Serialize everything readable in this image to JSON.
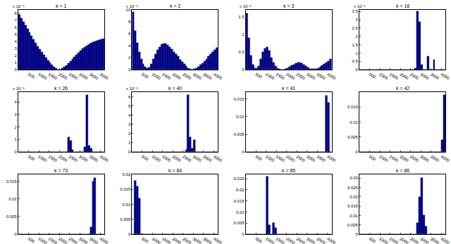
{
  "chart_data": [
    {
      "type": "histogram",
      "title": "k = 1",
      "annotations": [
        "x 10⁻³"
      ],
      "color": "#00008f",
      "bins": [
        0,
        100,
        200,
        300,
        400,
        500,
        600,
        700,
        800,
        900,
        1000,
        1100,
        1200,
        1300,
        1400,
        1500,
        1600,
        1700,
        1800,
        1900,
        2000,
        2100,
        2200,
        2300,
        2400,
        2500,
        2600,
        2700,
        2800,
        2900,
        3000,
        3100,
        3200,
        3300,
        3400,
        3500,
        3600,
        3700,
        3800,
        3900,
        4000,
        4100,
        4200
      ],
      "values": [
        7.8,
        7.3,
        6.8,
        6.3,
        5.8,
        5.3,
        4.8,
        4.3,
        3.8,
        3.3,
        2.9,
        2.5,
        2.1,
        1.7,
        1.3,
        1.0,
        0.7,
        0.4,
        0.2,
        0.05,
        0.05,
        0.2,
        0.4,
        0.6,
        0.9,
        1.2,
        1.5,
        1.8,
        2.1,
        2.4,
        2.7,
        3.0,
        3.2,
        3.4,
        3.6,
        3.8,
        3.9,
        4.0,
        4.1,
        4.2,
        4.3,
        4.4
      ],
      "xlim": [
        0,
        4200
      ],
      "xticks": [
        500,
        1000,
        1500,
        2000,
        2500,
        3000,
        3500,
        4000
      ],
      "ylim": [
        0,
        8.5
      ],
      "yticks": [
        0,
        1,
        2,
        3,
        4,
        5,
        6,
        7,
        8
      ]
    },
    {
      "type": "histogram",
      "title": "k = 2",
      "annotations": [
        "x 10⁻³"
      ],
      "color": "#00008f",
      "bins": [
        0,
        100,
        200,
        300,
        400,
        500,
        600,
        700,
        800,
        900,
        1000,
        1100,
        1200,
        1300,
        1400,
        1500,
        1600,
        1700,
        1800,
        1900,
        2000,
        2100,
        2200,
        2300,
        2400,
        2500,
        2600,
        2700,
        2800,
        2900,
        3000,
        3100,
        3200,
        3300,
        3400,
        3500,
        3600,
        3700,
        3800,
        3900,
        4000,
        4100,
        4200
      ],
      "values": [
        9.6,
        6.5,
        4.5,
        3.0,
        1.8,
        1.0,
        0.5,
        0.2,
        0.4,
        1.0,
        1.8,
        2.6,
        3.3,
        3.8,
        4.2,
        4.4,
        4.3,
        4.1,
        3.8,
        3.4,
        3.0,
        2.6,
        2.2,
        1.7,
        1.3,
        0.9,
        0.6,
        0.3,
        0.1,
        0.05,
        0.1,
        0.3,
        0.5,
        0.8,
        1.1,
        1.4,
        1.8,
        2.2,
        2.6,
        3.0,
        3.3,
        3.6
      ],
      "xlim": [
        0,
        4200
      ],
      "xticks": [
        500,
        1000,
        1500,
        2000,
        2500,
        3000,
        3500,
        4000
      ],
      "ylim": [
        0,
        10
      ],
      "yticks": [
        0,
        2,
        4,
        6,
        8,
        10
      ]
    },
    {
      "type": "histogram",
      "title": "k = 3",
      "annotations": [
        "x 10⁻³"
      ],
      "color": "#00008f",
      "bins": [
        0,
        100,
        200,
        300,
        400,
        500,
        600,
        700,
        800,
        900,
        1000,
        1100,
        1200,
        1300,
        1400,
        1500,
        1600,
        1700,
        1800,
        1900,
        2000,
        2100,
        2200,
        2300,
        2400,
        2500,
        2600,
        2700,
        2800,
        2900,
        3000,
        3100,
        3200,
        3300,
        3400,
        3500,
        3600,
        3700,
        3800,
        3900,
        4000,
        4100,
        4200
      ],
      "values": [
        1.6,
        0.9,
        0.4,
        0.15,
        0.05,
        0.05,
        0.1,
        0.3,
        0.5,
        0.6,
        0.65,
        0.55,
        0.35,
        0.2,
        0.1,
        0.05,
        0.02,
        0.01,
        0.01,
        0.02,
        0.05,
        0.08,
        0.12,
        0.15,
        0.18,
        0.2,
        0.2,
        0.18,
        0.15,
        0.1,
        0.06,
        0.03,
        0.02,
        0.02,
        0.03,
        0.05,
        0.08,
        0.12,
        0.16,
        0.2,
        0.25,
        0.3
      ],
      "xlim": [
        0,
        4200
      ],
      "xticks": [
        500,
        1000,
        1500,
        2000,
        2500,
        3000,
        3500,
        4000
      ],
      "ylim": [
        0,
        1.7
      ],
      "yticks": [
        0,
        0.5,
        1,
        1.5
      ]
    },
    {
      "type": "histogram",
      "title": "k = 16",
      "annotations": [
        "x 10⁻³"
      ],
      "color": "#00008f",
      "bins": [
        0,
        100,
        200,
        300,
        400,
        500,
        600,
        700,
        800,
        900,
        1000,
        1100,
        1200,
        1300,
        1400,
        1500,
        1600,
        1700,
        1800,
        1900,
        2000,
        2100,
        2200,
        2300,
        2400,
        2500,
        2600,
        2700,
        2800,
        2900,
        3000,
        3100,
        3200,
        3300,
        3400,
        3500,
        3600,
        3700,
        3800,
        3900,
        4000,
        4100,
        4200
      ],
      "values": [
        0,
        0,
        0,
        0,
        0,
        0,
        0,
        0,
        0,
        0,
        0,
        0,
        0,
        0,
        0,
        0,
        0,
        0,
        0,
        0,
        0,
        0,
        0,
        0,
        0,
        0,
        0,
        0.1,
        3.5,
        2.9,
        0.3,
        0,
        0,
        0.8,
        0,
        0,
        0.6,
        0,
        0,
        0,
        0,
        0
      ],
      "xlim": [
        0,
        4200
      ],
      "xticks": [
        500,
        1000,
        1500,
        2000,
        2500,
        3000,
        3500,
        4000
      ],
      "ylim": [
        0,
        3.6
      ],
      "yticks": [
        0,
        0.5,
        1,
        1.5,
        2,
        2.5,
        3,
        3.5
      ]
    },
    {
      "type": "histogram",
      "title": "k = 26",
      "annotations": [
        "x 10⁻³"
      ],
      "color": "#00008f",
      "bins": [
        0,
        100,
        200,
        300,
        400,
        500,
        600,
        700,
        800,
        900,
        1000,
        1100,
        1200,
        1300,
        1400,
        1500,
        1600,
        1700,
        1800,
        1900,
        2000,
        2100,
        2200,
        2300,
        2400,
        2500,
        2600,
        2700,
        2800,
        2900,
        3000,
        3100,
        3200,
        3300,
        3400,
        3500,
        3600,
        3700,
        3800,
        3900,
        4000,
        4100,
        4200
      ],
      "values": [
        0,
        0,
        0,
        0,
        0,
        0,
        0,
        0,
        0,
        0,
        0,
        0,
        0,
        0,
        0,
        0,
        0,
        0,
        0,
        0,
        0,
        0,
        0,
        0,
        1.2,
        0.9,
        0.2,
        0,
        0,
        0,
        0,
        0,
        0.4,
        4.6,
        0.5,
        0.3,
        0,
        0,
        0,
        0,
        0,
        0
      ],
      "xlim": [
        0,
        4200
      ],
      "xticks": [
        500,
        1000,
        1500,
        2000,
        2500,
        3000,
        3500,
        4000
      ],
      "ylim": [
        0,
        4.8
      ],
      "yticks": [
        0,
        1,
        2,
        3,
        4
      ]
    },
    {
      "type": "histogram",
      "title": "k = 40",
      "annotations": [
        "x 10⁻³"
      ],
      "color": "#00008f",
      "bins": [
        0,
        100,
        200,
        300,
        400,
        500,
        600,
        700,
        800,
        900,
        1000,
        1100,
        1200,
        1300,
        1400,
        1500,
        1600,
        1700,
        1800,
        1900,
        2000,
        2100,
        2200,
        2300,
        2400,
        2500,
        2600,
        2700,
        2800,
        2900,
        3000,
        3100,
        3200,
        3300,
        3400,
        3500,
        3600,
        3700,
        3800,
        3900,
        4000,
        4100,
        4200
      ],
      "values": [
        0,
        0,
        0,
        0,
        0,
        0,
        0,
        0,
        0,
        0,
        0,
        0,
        0,
        0,
        0,
        0,
        0,
        0,
        0,
        0,
        0,
        0,
        0,
        0,
        0,
        0,
        0.2,
        6.2,
        1.6,
        0.4,
        1.3,
        0,
        0,
        0,
        0,
        0,
        0,
        0,
        0,
        0,
        0,
        0
      ],
      "xlim": [
        0,
        4200
      ],
      "xticks": [
        500,
        1000,
        1500,
        2000,
        2500,
        3000,
        3500,
        4000
      ],
      "ylim": [
        0,
        6.5
      ],
      "yticks": [
        0,
        1,
        2,
        3,
        4,
        5,
        6
      ]
    },
    {
      "type": "histogram",
      "title": "k = 41",
      "color": "#00008f",
      "bins": [
        0,
        100,
        200,
        300,
        400,
        500,
        600,
        700,
        800,
        900,
        1000,
        1100,
        1200,
        1300,
        1400,
        1500,
        1600,
        1700,
        1800,
        1900,
        2000,
        2100,
        2200,
        2300,
        2400,
        2500,
        2600,
        2700,
        2800,
        2900,
        3000,
        3100,
        3200,
        3300,
        3400,
        3500,
        3600,
        3700,
        3800,
        3900,
        4000,
        4100,
        4200
      ],
      "values": [
        0,
        0,
        0,
        0,
        0,
        0,
        0,
        0,
        0,
        0,
        0,
        0,
        0,
        0,
        0,
        0,
        0,
        0,
        0,
        0,
        0,
        0,
        0,
        0,
        0,
        0,
        0,
        0,
        0,
        0,
        0,
        0,
        0,
        0,
        0,
        0,
        0,
        0,
        0,
        0.016,
        0.014,
        0
      ],
      "xlim": [
        0,
        4200
      ],
      "xticks": [
        500,
        1000,
        1500,
        2000,
        2500,
        3000,
        3500,
        4000
      ],
      "ylim": [
        0,
        0.017
      ],
      "yticks": [
        0,
        0.005,
        0.01,
        0.015
      ]
    },
    {
      "type": "histogram",
      "title": "k = 42",
      "color": "#00008f",
      "bins": [
        0,
        100,
        200,
        300,
        400,
        500,
        600,
        700,
        800,
        900,
        1000,
        1100,
        1200,
        1300,
        1400,
        1500,
        1600,
        1700,
        1800,
        1900,
        2000,
        2100,
        2200,
        2300,
        2400,
        2500,
        2600,
        2700,
        2800,
        2900,
        3000,
        3100,
        3200,
        3300,
        3400,
        3500,
        3600,
        3700,
        3800,
        3900,
        4000,
        4100,
        4200
      ],
      "values": [
        0,
        0,
        0,
        0,
        0,
        0,
        0,
        0,
        0,
        0,
        0,
        0,
        0,
        0,
        0,
        0,
        0,
        0,
        0,
        0,
        0,
        0,
        0,
        0,
        0,
        0,
        0,
        0,
        0,
        0,
        0,
        0,
        0,
        0,
        0,
        0,
        0,
        0,
        0,
        0,
        0.004,
        0.019
      ],
      "xlim": [
        0,
        4200
      ],
      "xticks": [
        500,
        1000,
        1500,
        2000,
        2500,
        3000,
        3500,
        4000
      ],
      "ylim": [
        0,
        0.02
      ],
      "yticks": [
        0,
        0.005,
        0.01,
        0.015
      ]
    },
    {
      "type": "histogram",
      "title": "k = 73",
      "color": "#00008f",
      "bins": [
        0,
        100,
        200,
        300,
        400,
        500,
        600,
        700,
        800,
        900,
        1000,
        1100,
        1200,
        1300,
        1400,
        1500,
        1600,
        1700,
        1800,
        1900,
        2000,
        2100,
        2200,
        2300,
        2400,
        2500,
        2600,
        2700,
        2800,
        2900,
        3000,
        3100,
        3200,
        3300,
        3400,
        3500,
        3600,
        3700,
        3800,
        3900,
        4000,
        4100,
        4200
      ],
      "values": [
        0,
        0,
        0,
        0,
        0,
        0,
        0,
        0,
        0,
        0,
        0,
        0,
        0,
        0,
        0,
        0,
        0,
        0,
        0,
        0,
        0,
        0,
        0,
        0,
        0,
        0,
        0,
        0,
        0,
        0,
        0,
        0,
        0,
        0,
        0,
        0.002,
        0.015,
        0.016,
        0,
        0,
        0,
        0
      ],
      "xlim": [
        0,
        4200
      ],
      "xticks": [
        500,
        1000,
        1500,
        2000,
        2500,
        3000,
        3500,
        4000
      ],
      "ylim": [
        0,
        0.017
      ],
      "yticks": [
        0,
        0.005,
        0.01,
        0.015
      ]
    },
    {
      "type": "histogram",
      "title": "k = 84",
      "color": "#00008f",
      "bins": [
        0,
        100,
        200,
        300,
        400,
        500,
        600,
        700,
        800,
        900,
        1000,
        1100,
        1200,
        1300,
        1400,
        1500,
        1600,
        1700,
        1800,
        1900,
        2000,
        2100,
        2200,
        2300,
        2400,
        2500,
        2600,
        2700,
        2800,
        2900,
        3000,
        3100,
        3200,
        3300,
        3400,
        3500,
        3600,
        3700,
        3800,
        3900,
        4000,
        4100,
        4200
      ],
      "values": [
        0,
        0.018,
        0.016,
        0.012,
        0,
        0,
        0,
        0,
        0,
        0,
        0,
        0,
        0,
        0,
        0,
        0,
        0,
        0,
        0,
        0,
        0,
        0,
        0,
        0,
        0,
        0,
        0,
        0,
        0,
        0,
        0,
        0,
        0,
        0,
        0,
        0,
        0,
        0,
        0,
        0,
        0,
        0
      ],
      "xlim": [
        0,
        4200
      ],
      "xticks": [
        500,
        1000,
        1500,
        2000,
        2500,
        3000,
        3500,
        4000
      ],
      "ylim": [
        0,
        0.02
      ],
      "yticks": [
        0,
        0.005,
        0.01,
        0.015,
        0.02
      ]
    },
    {
      "type": "histogram",
      "title": "k = 85",
      "color": "#00008f",
      "bins": [
        0,
        100,
        200,
        300,
        400,
        500,
        600,
        700,
        800,
        900,
        1000,
        1100,
        1200,
        1300,
        1400,
        1500,
        1600,
        1700,
        1800,
        1900,
        2000,
        2100,
        2200,
        2300,
        2400,
        2500,
        2600,
        2700,
        2800,
        2900,
        3000,
        3100,
        3200,
        3300,
        3400,
        3500,
        3600,
        3700,
        3800,
        3900,
        4000,
        4100,
        4200
      ],
      "values": [
        0,
        0,
        0,
        0,
        0,
        0,
        0,
        0,
        0,
        0,
        0.026,
        0.004,
        0,
        0.005,
        0.003,
        0,
        0,
        0,
        0,
        0,
        0,
        0,
        0,
        0,
        0,
        0,
        0,
        0,
        0,
        0,
        0,
        0,
        0,
        0,
        0,
        0,
        0,
        0,
        0,
        0,
        0,
        0
      ],
      "xlim": [
        0,
        4200
      ],
      "xticks": [
        500,
        1000,
        1500,
        2000,
        2500,
        3000,
        3500,
        4000
      ],
      "ylim": [
        0,
        0.027
      ],
      "yticks": [
        0,
        0.005,
        0.01,
        0.015,
        0.02,
        0.025
      ]
    },
    {
      "type": "histogram",
      "title": "k = 86",
      "color": "#00008f",
      "bins": [
        0,
        100,
        200,
        300,
        400,
        500,
        600,
        700,
        800,
        900,
        1000,
        1100,
        1200,
        1300,
        1400,
        1500,
        1600,
        1700,
        1800,
        1900,
        2000,
        2100,
        2200,
        2300,
        2400,
        2500,
        2600,
        2700,
        2800,
        2900,
        3000,
        3100,
        3200,
        3300,
        3400,
        3500,
        3600,
        3700,
        3800,
        3900,
        4000,
        4100,
        4200
      ],
      "values": [
        0,
        0,
        0,
        0,
        0,
        0,
        0,
        0,
        0,
        0,
        0,
        0,
        0,
        0,
        0,
        0,
        0,
        0,
        0,
        0,
        0,
        0,
        0,
        0,
        0,
        0,
        0,
        0,
        0.006,
        0.02,
        0.03,
        0.01,
        0.004,
        0,
        0,
        0,
        0,
        0,
        0,
        0,
        0,
        0
      ],
      "xlim": [
        0,
        4200
      ],
      "xticks": [
        500,
        1000,
        1500,
        2000,
        2500,
        3000,
        3500,
        4000
      ],
      "ylim": [
        0,
        0.032
      ],
      "yticks": [
        0,
        0.005,
        0.01,
        0.015,
        0.02,
        0.025,
        0.03
      ]
    }
  ]
}
